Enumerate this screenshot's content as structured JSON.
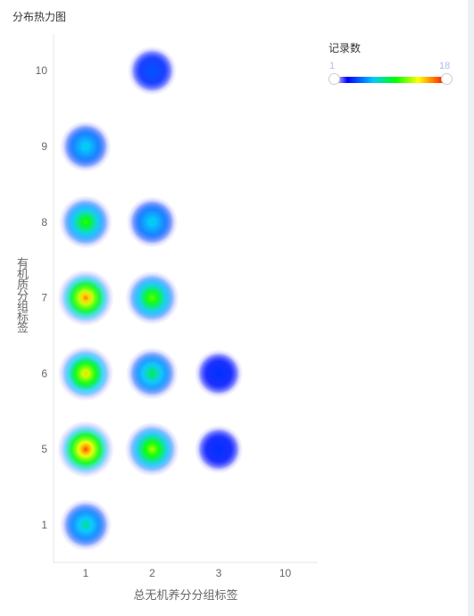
{
  "panel": {
    "title": "分布热力图"
  },
  "legend": {
    "title": "记录数",
    "min": "1",
    "max": "18"
  },
  "chart_data": {
    "type": "heatmap",
    "x_categories": [
      "1",
      "2",
      "3",
      "10"
    ],
    "y_categories": [
      "1",
      "5",
      "6",
      "7",
      "8",
      "9",
      "10"
    ],
    "xlabel": "总无机养分分组标签",
    "ylabel": "有机质分组标签",
    "value_range": [
      1,
      18
    ],
    "points": [
      {
        "x": "1",
        "y": "1",
        "value": 8
      },
      {
        "x": "1",
        "y": "5",
        "value": 18
      },
      {
        "x": "1",
        "y": "6",
        "value": 15
      },
      {
        "x": "1",
        "y": "7",
        "value": 17
      },
      {
        "x": "1",
        "y": "8",
        "value": 11
      },
      {
        "x": "1",
        "y": "9",
        "value": 7
      },
      {
        "x": "2",
        "y": "5",
        "value": 13
      },
      {
        "x": "2",
        "y": "6",
        "value": 9
      },
      {
        "x": "2",
        "y": "7",
        "value": 12
      },
      {
        "x": "2",
        "y": "8",
        "value": 7
      },
      {
        "x": "2",
        "y": "10",
        "value": 3
      },
      {
        "x": "3",
        "y": "5",
        "value": 2
      },
      {
        "x": "3",
        "y": "6",
        "value": 2
      }
    ]
  }
}
